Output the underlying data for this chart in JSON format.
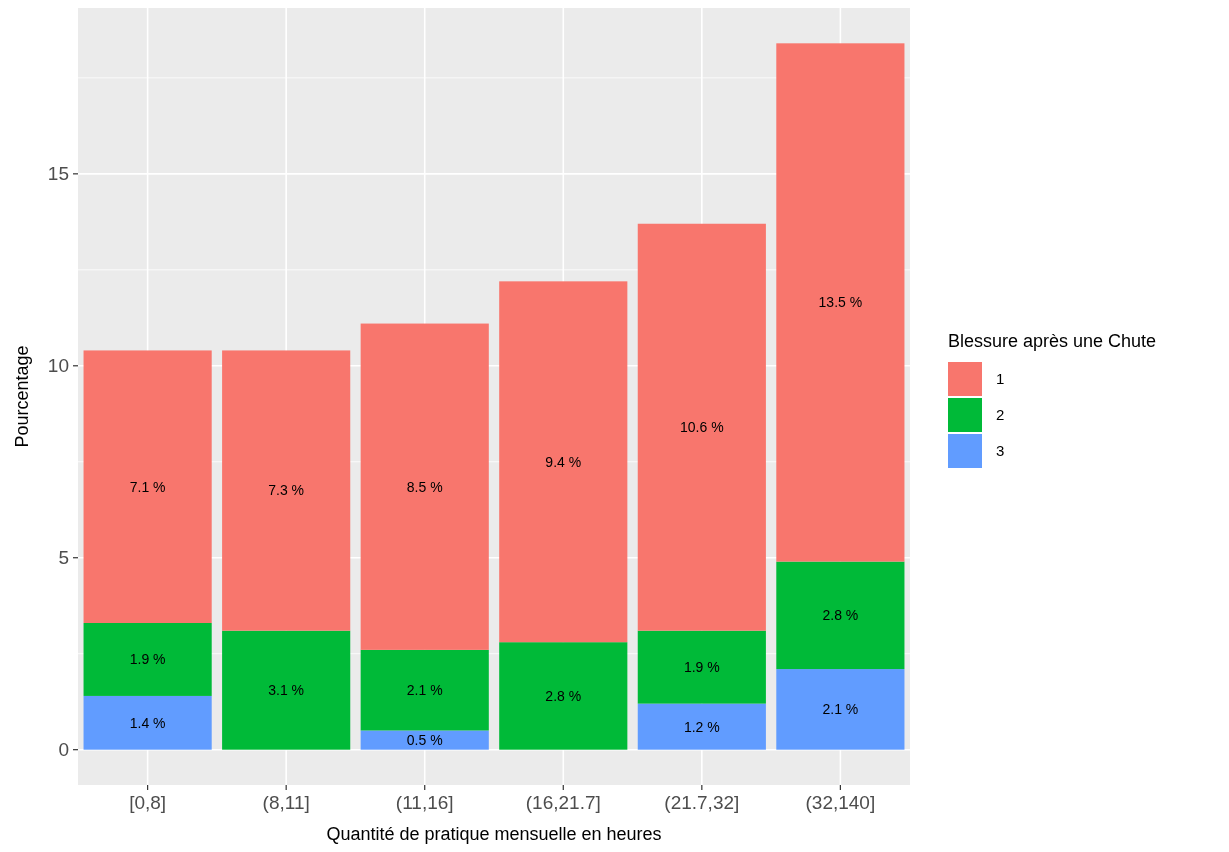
{
  "chart_data": {
    "type": "bar",
    "stacked": true,
    "xlabel": "Quantité de pratique mensuelle en heures",
    "ylabel": "Pourcentage",
    "legend_title": "Blessure après une Chute",
    "legend": "right",
    "categories": [
      "[0,8]",
      "(8,11]",
      "(11,16]",
      "(16,21.7]",
      "(21.7,32]",
      "(32,140]"
    ],
    "series": [
      {
        "name": "3",
        "color": "#619cff",
        "values": [
          1.4,
          null,
          0.5,
          null,
          1.2,
          2.1
        ],
        "value_labels": [
          "1.4 %",
          null,
          "0.5 %",
          null,
          "1.2 %",
          "2.1 %"
        ]
      },
      {
        "name": "2",
        "color": "#00ba38",
        "values": [
          1.9,
          3.1,
          2.1,
          2.8,
          1.9,
          2.8
        ],
        "value_labels": [
          "1.9 %",
          "3.1 %",
          "2.1 %",
          "2.8 %",
          "1.9 %",
          "2.8 %"
        ]
      },
      {
        "name": "1",
        "color": "#f8766d",
        "values": [
          7.1,
          7.3,
          8.5,
          9.4,
          10.6,
          13.5
        ],
        "value_labels": [
          "7.1 %",
          "7.3 %",
          "8.5 %",
          "9.4 %",
          "10.6 %",
          "13.5 %"
        ]
      }
    ],
    "ylim": [
      -0.92,
      19.32
    ],
    "yticks": [
      0,
      5,
      10,
      15
    ],
    "grid": true
  }
}
